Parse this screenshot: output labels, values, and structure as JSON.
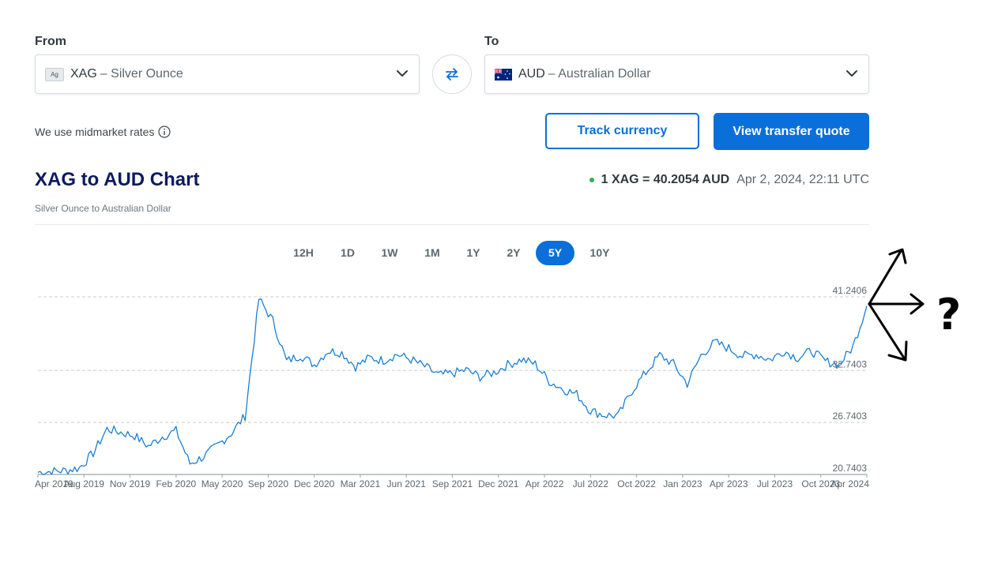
{
  "from": {
    "label": "From",
    "code": "XAG",
    "name": "– Silver Ounce",
    "badge": "Ag"
  },
  "to": {
    "label": "To",
    "code": "AUD",
    "name": "– Australian Dollar"
  },
  "midmarket_note": "We use midmarket rates",
  "buttons": {
    "track": "Track currency",
    "quote": "View transfer quote"
  },
  "chart_header": {
    "title": "XAG to AUD Chart",
    "subtitle": "Silver Ounce to Australian Dollar",
    "rate": "1 XAG = 40.2054 AUD",
    "timestamp": "Apr 2, 2024, 22:11 UTC"
  },
  "periods": [
    "12H",
    "1D",
    "1W",
    "1M",
    "1Y",
    "2Y",
    "5Y",
    "10Y"
  ],
  "active_period": "5Y",
  "annotation": {
    "question_mark": "?"
  },
  "colors": {
    "accent": "#0a6fd8",
    "title": "#0d1b5e",
    "live": "#2eb24b",
    "line": "#1a7fd6"
  },
  "chart_data": {
    "type": "line",
    "title": "XAG to AUD Chart",
    "xlabel": "",
    "ylabel": "",
    "x_ticks": [
      "Apr 2019",
      "Aug 2019",
      "Nov 2019",
      "Feb 2020",
      "May 2020",
      "Sep 2020",
      "Dec 2020",
      "Mar 2021",
      "Jun 2021",
      "Sep 2021",
      "Dec 2021",
      "Apr 2022",
      "Jul 2022",
      "Oct 2022",
      "Jan 2023",
      "Apr 2023",
      "Jul 2023",
      "Oct 2023",
      "Apr 2024"
    ],
    "y_ticks": [
      41.2406,
      32.7403,
      26.7403,
      20.7403
    ],
    "ylim": [
      20.7403,
      41.2406
    ],
    "grid": true,
    "series": [
      {
        "x": [
          "2019-04",
          "2019-05",
          "2019-06",
          "2019-07",
          "2019-08",
          "2019-09",
          "2019-10",
          "2019-11",
          "2019-12",
          "2020-01",
          "2020-02",
          "2020-03",
          "2020-04",
          "2020-05",
          "2020-06",
          "2020-07",
          "2020-08",
          "2020-09",
          "2020-10",
          "2020-11",
          "2020-12",
          "2021-01",
          "2021-02",
          "2021-03",
          "2021-04",
          "2021-05",
          "2021-06",
          "2021-07",
          "2021-08",
          "2021-09",
          "2021-10",
          "2021-11",
          "2021-12",
          "2022-01",
          "2022-02",
          "2022-03",
          "2022-04",
          "2022-05",
          "2022-06",
          "2022-07",
          "2022-08",
          "2022-09",
          "2022-10",
          "2022-11",
          "2022-12",
          "2023-01",
          "2023-02",
          "2023-03",
          "2023-04",
          "2023-05",
          "2023-06",
          "2023-07",
          "2023-08",
          "2023-09",
          "2023-10",
          "2023-11",
          "2023-12",
          "2024-01",
          "2024-02",
          "2024-03",
          "2024-04"
        ],
        "y": [
          21.0,
          21.1,
          21.2,
          21.5,
          23.2,
          26.0,
          25.6,
          25.2,
          24.0,
          25.1,
          25.8,
          22.0,
          22.8,
          24.1,
          25.5,
          27.5,
          41.0,
          38.5,
          33.8,
          34.5,
          33.4,
          35.0,
          34.8,
          33.2,
          34.2,
          33.9,
          34.6,
          34.0,
          33.2,
          32.2,
          32.4,
          32.8,
          32.0,
          32.5,
          33.4,
          34.0,
          33.5,
          31.5,
          30.6,
          30.0,
          28.1,
          27.6,
          27.5,
          30.4,
          32.5,
          34.5,
          33.5,
          31.2,
          34.5,
          36.0,
          35.3,
          34.4,
          34.6,
          34.0,
          35.0,
          34.2,
          35.0,
          33.8,
          33.4,
          35.5,
          40.2
        ]
      }
    ]
  }
}
